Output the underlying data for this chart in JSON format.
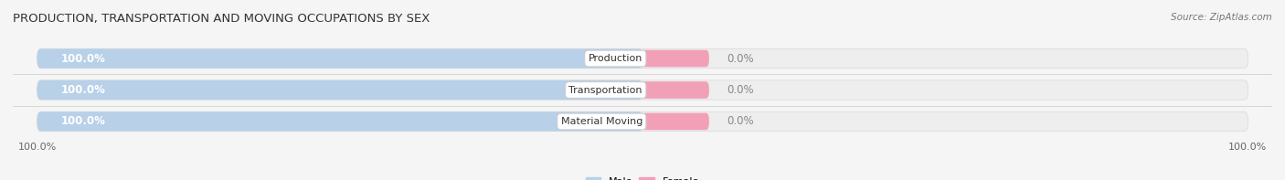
{
  "title": "PRODUCTION, TRANSPORTATION AND MOVING OCCUPATIONS BY SEX",
  "source": "Source: ZipAtlas.com",
  "categories": [
    "Production",
    "Transportation",
    "Material Moving"
  ],
  "male_values": [
    100.0,
    100.0,
    100.0
  ],
  "female_values": [
    0.0,
    0.0,
    0.0
  ],
  "male_color": "#b8d0e8",
  "female_color": "#f2a0b8",
  "bar_bg_color": "#eeeeee",
  "chart_bg_color": "#f5f5f5",
  "row_bg_color": "#f0f0f0",
  "title_fontsize": 9.5,
  "source_fontsize": 7.5,
  "tick_fontsize": 8,
  "label_fontsize": 8,
  "bar_value_fontsize": 8.5,
  "male_pct": 50,
  "female_pct": 5,
  "total_bar_width": 100
}
